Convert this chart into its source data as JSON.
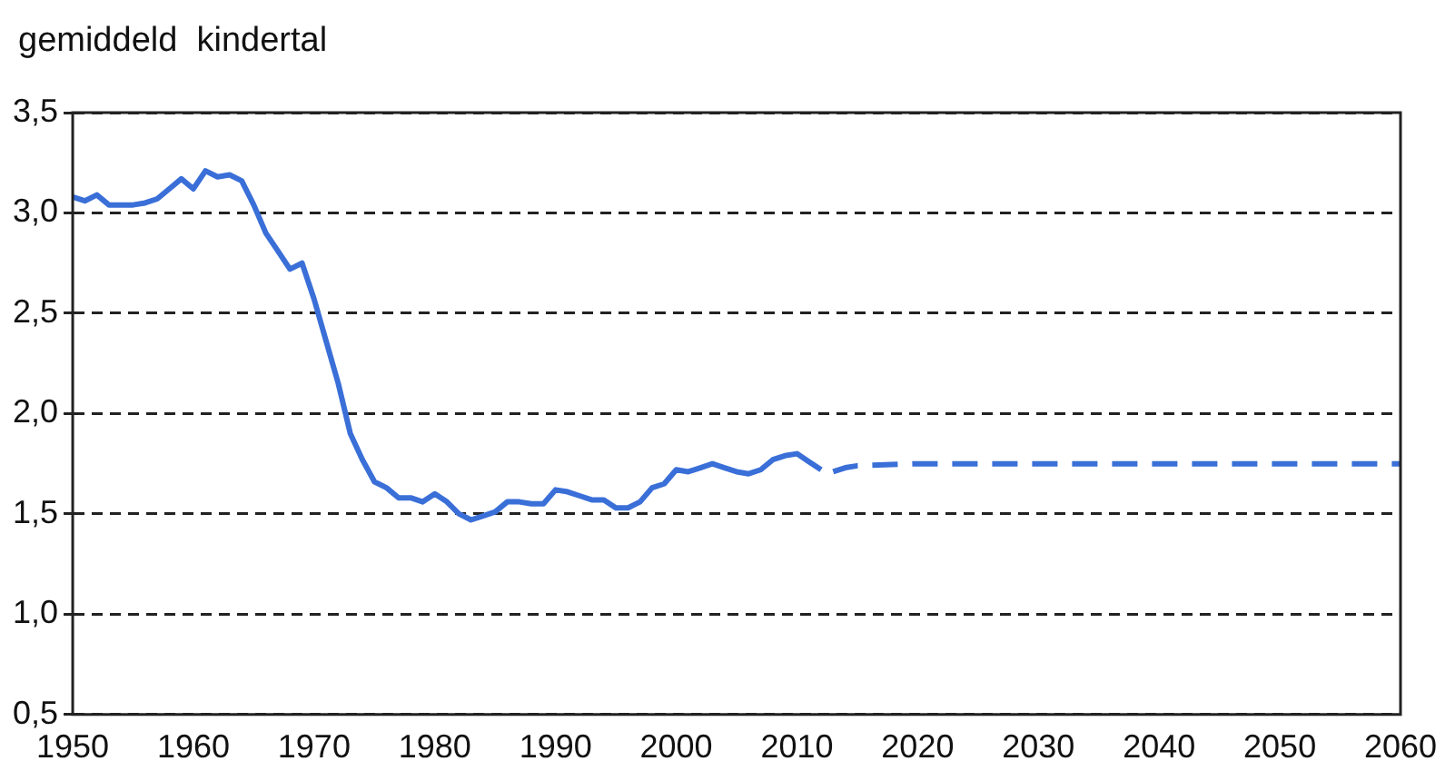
{
  "chart_data": {
    "type": "line",
    "ylabel": "gemiddeld  kindertal",
    "xlim": [
      1950,
      2060
    ],
    "xticks": [
      1950,
      1960,
      1970,
      1980,
      1990,
      2000,
      2010,
      2020,
      2030,
      2040,
      2050,
      2060
    ],
    "ylim": [
      0.5,
      3.5
    ],
    "yticks": [
      {
        "value": 0.5,
        "label": "0,5"
      },
      {
        "value": 1,
        "label": "1,0"
      },
      {
        "value": 1.5,
        "label": "1,5"
      },
      {
        "value": 2,
        "label": "2,0"
      },
      {
        "value": 2.5,
        "label": "2,5"
      },
      {
        "value": 3,
        "label": "3,0"
      },
      {
        "value": 3.5,
        "label": "3,5"
      }
    ],
    "grid": "y",
    "legend": false,
    "marker": "none",
    "series": [
      {
        "color": "#3a6fd8",
        "line_style": "solid",
        "x": [
          1950,
          1951,
          1952,
          1953,
          1954,
          1955,
          1956,
          1957,
          1958,
          1959,
          1960,
          1961,
          1962,
          1963,
          1964,
          1965,
          1966,
          1967,
          1968,
          1969,
          1970,
          1971,
          1972,
          1973,
          1974,
          1975,
          1976,
          1977,
          1978,
          1979,
          1980,
          1981,
          1982,
          1983,
          1984,
          1985,
          1986,
          1987,
          1988,
          1989,
          1990,
          1991,
          1992,
          1993,
          1994,
          1995,
          1996,
          1997,
          1998,
          1999,
          2000,
          2001,
          2002,
          2003,
          2004,
          2005,
          2006,
          2007,
          2008,
          2009,
          2010,
          2011,
          2012
        ],
        "values": [
          3.08,
          3.06,
          3.09,
          3.04,
          3.04,
          3.04,
          3.05,
          3.07,
          3.12,
          3.17,
          3.12,
          3.21,
          3.18,
          3.19,
          3.16,
          3.04,
          2.9,
          2.81,
          2.72,
          2.75,
          2.57,
          2.36,
          2.15,
          1.9,
          1.77,
          1.66,
          1.63,
          1.58,
          1.58,
          1.56,
          1.6,
          1.56,
          1.5,
          1.47,
          1.49,
          1.51,
          1.56,
          1.56,
          1.55,
          1.55,
          1.62,
          1.61,
          1.59,
          1.57,
          1.57,
          1.53,
          1.53,
          1.56,
          1.63,
          1.65,
          1.72,
          1.71,
          1.73,
          1.75,
          1.73,
          1.71,
          1.7,
          1.72,
          1.77,
          1.79,
          1.8,
          1.76,
          1.72
        ]
      },
      {
        "color": "#3a6fd8",
        "line_style": "dashed",
        "x": [
          2013,
          2014,
          2015,
          2020,
          2060
        ],
        "values": [
          1.71,
          1.73,
          1.74,
          1.75,
          1.75
        ]
      }
    ]
  }
}
